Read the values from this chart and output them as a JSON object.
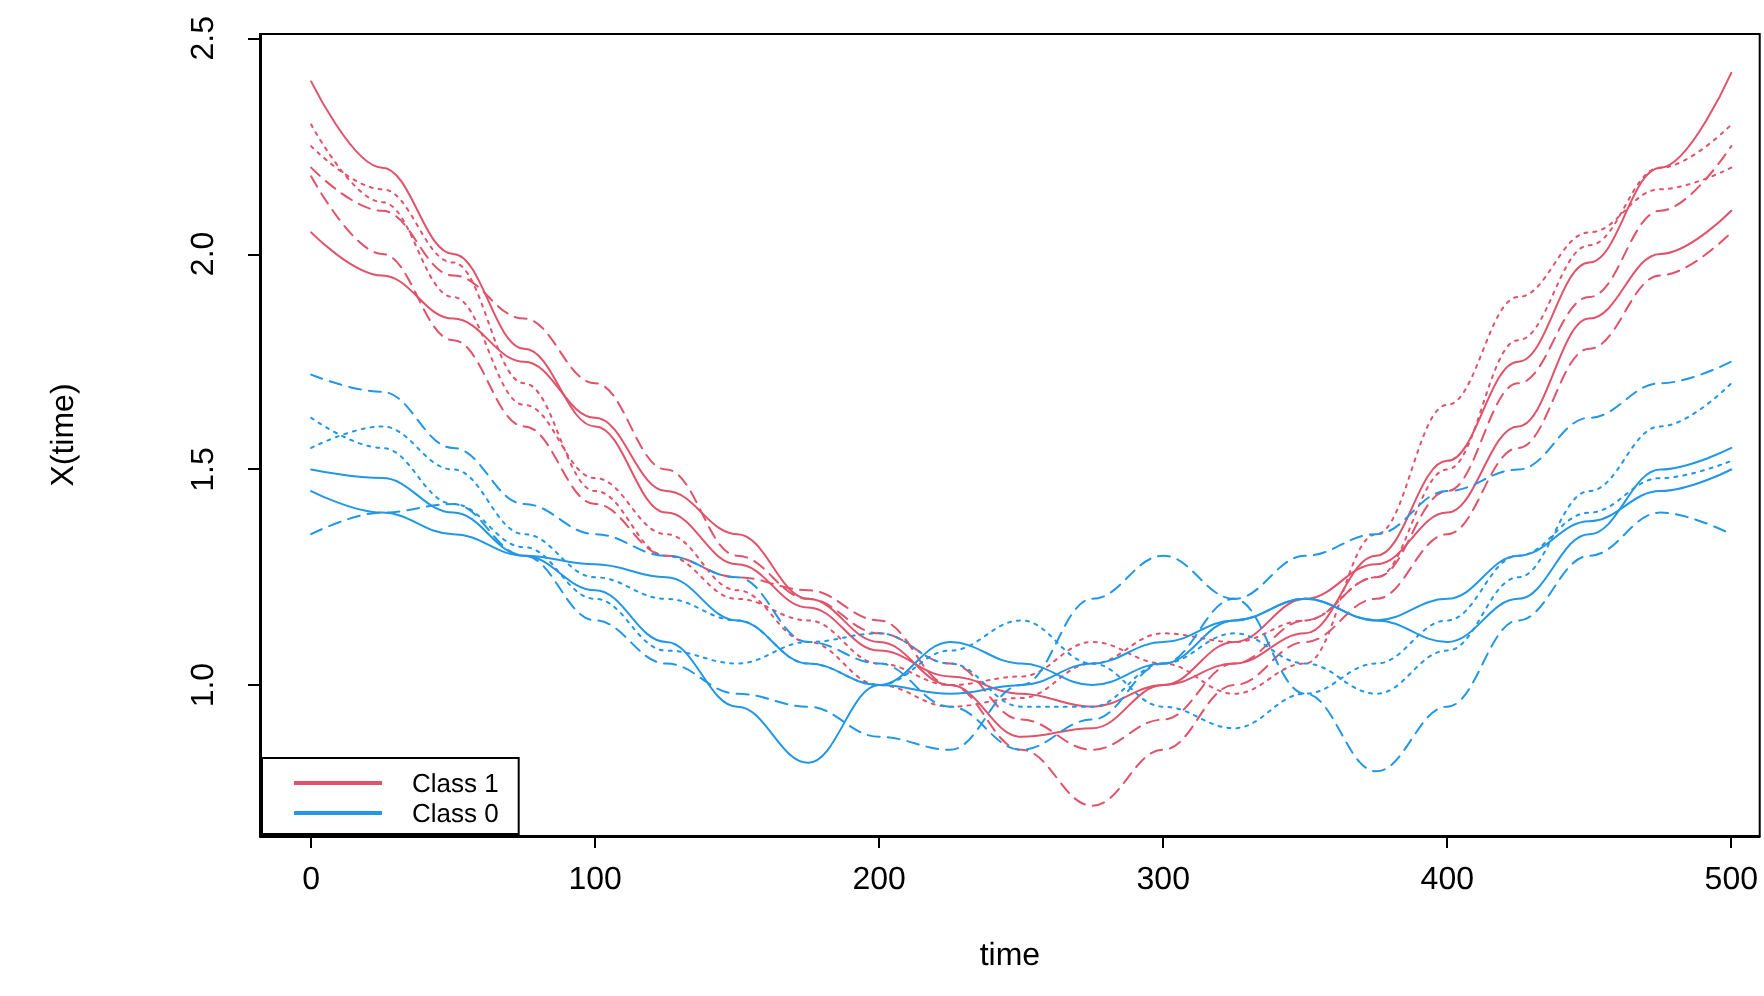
{
  "chart_data": {
    "type": "line",
    "xlabel": "time",
    "ylabel": "X(time)",
    "x": [
      0,
      25,
      50,
      75,
      100,
      125,
      150,
      175,
      200,
      225,
      250,
      275,
      300,
      325,
      350,
      375,
      400,
      425,
      450,
      475,
      500
    ],
    "series": [
      {
        "name": "Class 1",
        "color": "#df536b",
        "line_style": "solid",
        "values": [
          2.4,
          2.2,
          2.0,
          1.78,
          1.6,
          1.4,
          1.28,
          1.18,
          1.08,
          1.02,
          0.98,
          0.95,
          1.0,
          1.05,
          1.12,
          1.3,
          1.52,
          1.75,
          1.98,
          2.2,
          2.42
        ]
      },
      {
        "color": "#df536b",
        "line_style": "dashed",
        "values": [
          2.2,
          2.1,
          1.95,
          1.85,
          1.7,
          1.5,
          1.3,
          1.2,
          1.12,
          1.05,
          0.92,
          0.85,
          0.92,
          1.05,
          1.15,
          1.25,
          1.45,
          1.7,
          1.9,
          2.1,
          2.25
        ]
      },
      {
        "color": "#df536b",
        "line_style": "dotted",
        "values": [
          2.25,
          2.15,
          1.98,
          1.7,
          1.45,
          1.3,
          1.2,
          1.15,
          1.05,
          1.0,
          1.02,
          1.1,
          1.05,
          0.98,
          1.05,
          1.35,
          1.65,
          1.9,
          2.05,
          2.15,
          2.2
        ]
      },
      {
        "color": "#df536b",
        "line_style": "solid",
        "values": [
          2.05,
          1.95,
          1.85,
          1.75,
          1.62,
          1.45,
          1.35,
          1.2,
          1.1,
          1.0,
          0.88,
          0.9,
          1.0,
          1.1,
          1.2,
          1.28,
          1.4,
          1.6,
          1.85,
          2.0,
          2.1
        ]
      },
      {
        "color": "#df536b",
        "line_style": "dashed",
        "values": [
          2.18,
          2.0,
          1.8,
          1.6,
          1.42,
          1.3,
          1.25,
          1.22,
          1.15,
          1.0,
          0.85,
          0.72,
          0.85,
          1.0,
          1.1,
          1.2,
          1.35,
          1.55,
          1.78,
          1.95,
          2.05
        ]
      },
      {
        "color": "#df536b",
        "line_style": "dotted",
        "values": [
          2.3,
          2.12,
          1.9,
          1.65,
          1.48,
          1.35,
          1.22,
          1.1,
          1.0,
          0.95,
          0.97,
          1.05,
          1.12,
          1.1,
          1.15,
          1.25,
          1.5,
          1.8,
          2.02,
          2.2,
          2.3
        ]
      },
      {
        "name": "Class 0",
        "color": "#2297e6",
        "line_style": "solid",
        "values": [
          1.5,
          1.48,
          1.4,
          1.3,
          1.22,
          1.1,
          0.95,
          0.82,
          1.0,
          1.1,
          1.05,
          1.0,
          1.05,
          1.15,
          1.2,
          1.15,
          1.1,
          1.2,
          1.35,
          1.5,
          1.55
        ]
      },
      {
        "color": "#2297e6",
        "line_style": "dashed",
        "values": [
          1.72,
          1.68,
          1.55,
          1.42,
          1.35,
          1.3,
          1.25,
          1.1,
          1.05,
          0.95,
          0.85,
          0.92,
          1.05,
          1.2,
          1.3,
          1.35,
          1.45,
          1.5,
          1.62,
          1.7,
          1.75
        ]
      },
      {
        "color": "#2297e6",
        "line_style": "dotted",
        "values": [
          1.55,
          1.6,
          1.5,
          1.35,
          1.25,
          1.2,
          1.15,
          1.05,
          1.0,
          1.08,
          1.15,
          1.05,
          0.95,
          0.9,
          0.98,
          1.05,
          1.15,
          1.3,
          1.4,
          1.48,
          1.52
        ]
      },
      {
        "color": "#2297e6",
        "line_style": "solid",
        "values": [
          1.45,
          1.4,
          1.35,
          1.3,
          1.28,
          1.25,
          1.15,
          1.05,
          1.0,
          0.98,
          1.0,
          1.05,
          1.1,
          1.15,
          1.2,
          1.15,
          1.2,
          1.3,
          1.38,
          1.45,
          1.5
        ]
      },
      {
        "color": "#2297e6",
        "line_style": "dashed",
        "values": [
          1.35,
          1.4,
          1.42,
          1.3,
          1.15,
          1.05,
          0.98,
          0.95,
          0.88,
          0.85,
          1.0,
          1.2,
          1.3,
          1.2,
          0.98,
          0.8,
          0.95,
          1.15,
          1.3,
          1.4,
          1.35
        ]
      },
      {
        "color": "#2297e6",
        "line_style": "dotted",
        "values": [
          1.62,
          1.55,
          1.42,
          1.32,
          1.2,
          1.08,
          1.05,
          1.1,
          1.12,
          1.05,
          0.95,
          0.95,
          1.05,
          1.12,
          1.05,
          0.98,
          1.08,
          1.25,
          1.45,
          1.6,
          1.7
        ]
      }
    ],
    "xlim": [
      -18,
      510
    ],
    "xticks": [
      0,
      100,
      200,
      300,
      400,
      500
    ],
    "ylim": [
      0.65,
      2.51
    ],
    "yticks": [
      {
        "value": 1,
        "label": "1.0"
      },
      {
        "value": 1.5,
        "label": "1.5"
      },
      {
        "value": 2,
        "label": "2.0"
      },
      {
        "value": 2.5,
        "label": "2.5"
      }
    ],
    "legend": "bottom left",
    "grid": false,
    "marker": "none"
  }
}
